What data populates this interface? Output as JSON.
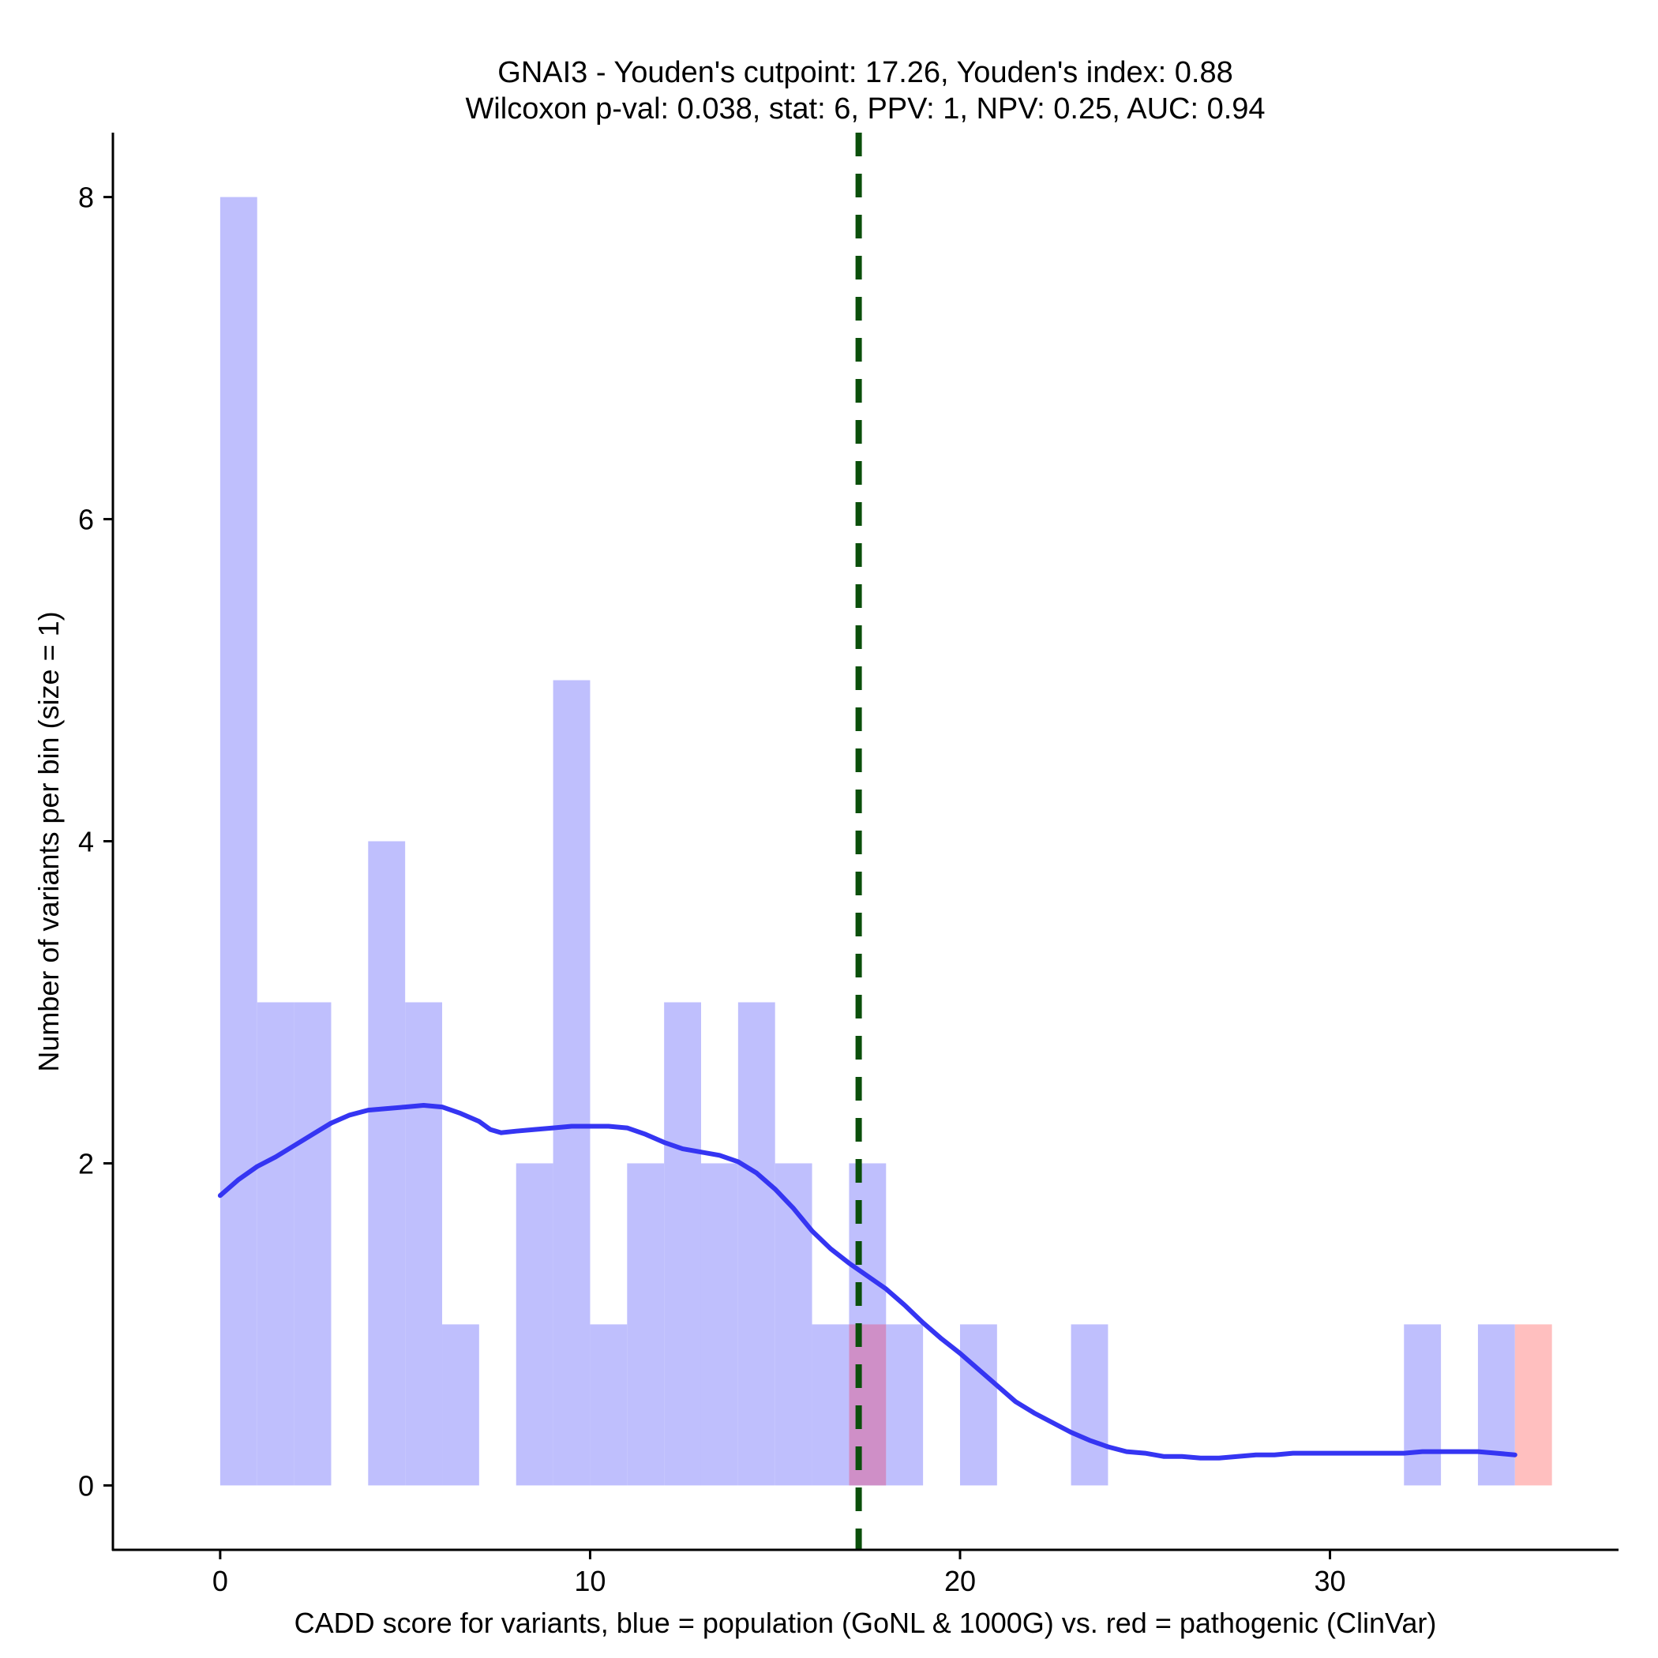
{
  "chart_data": {
    "type": "bar",
    "title_line1": "GNAI3 - Youden's cutpoint: 17.26, Youden's index: 0.88",
    "title_line2": "Wilcoxon p-val: 0.038, stat: 6, PPV: 1, NPV: 0.25, AUC: 0.94",
    "xlabel": "CADD score for variants, blue = population (GoNL & 1000G) vs. red = pathogenic (ClinVar)",
    "ylabel": "Number of variants per bin (size = 1)",
    "xlim": [
      -2.9,
      37.8
    ],
    "ylim": [
      -0.4,
      8.4
    ],
    "x_ticks": [
      0,
      10,
      20,
      30
    ],
    "y_ticks": [
      0,
      2,
      4,
      6,
      8
    ],
    "bin_width": 1,
    "series": [
      {
        "name": "population",
        "color": "#bfbffd",
        "bins": [
          {
            "start": 0,
            "count": 8
          },
          {
            "start": 1,
            "count": 3
          },
          {
            "start": 2,
            "count": 3
          },
          {
            "start": 4,
            "count": 4
          },
          {
            "start": 5,
            "count": 3
          },
          {
            "start": 6,
            "count": 1
          },
          {
            "start": 8,
            "count": 2
          },
          {
            "start": 9,
            "count": 5
          },
          {
            "start": 10,
            "count": 1
          },
          {
            "start": 11,
            "count": 2
          },
          {
            "start": 12,
            "count": 3
          },
          {
            "start": 13,
            "count": 2
          },
          {
            "start": 14,
            "count": 3
          },
          {
            "start": 15,
            "count": 2
          },
          {
            "start": 16,
            "count": 1
          },
          {
            "start": 17,
            "count": 2
          },
          {
            "start": 18,
            "count": 1
          },
          {
            "start": 20,
            "count": 1
          },
          {
            "start": 23,
            "count": 1
          },
          {
            "start": 32,
            "count": 1
          },
          {
            "start": 34,
            "count": 1
          }
        ]
      },
      {
        "name": "pathogenic",
        "color": "#ffbfbf",
        "overlap_color": "#cf8fc7",
        "bins": [
          {
            "start": 17,
            "count": 1
          },
          {
            "start": 35,
            "count": 1
          }
        ]
      }
    ],
    "density_curve": {
      "color": "#3535f2",
      "points": [
        [
          0,
          1.8
        ],
        [
          0.5,
          1.9
        ],
        [
          1,
          1.98
        ],
        [
          1.5,
          2.04
        ],
        [
          2,
          2.11
        ],
        [
          2.5,
          2.18
        ],
        [
          3,
          2.25
        ],
        [
          3.5,
          2.3
        ],
        [
          4,
          2.33
        ],
        [
          4.5,
          2.34
        ],
        [
          5,
          2.35
        ],
        [
          5.5,
          2.36
        ],
        [
          6,
          2.35
        ],
        [
          6.5,
          2.31
        ],
        [
          7,
          2.26
        ],
        [
          7.3,
          2.21
        ],
        [
          7.6,
          2.19
        ],
        [
          8,
          2.2
        ],
        [
          8.5,
          2.21
        ],
        [
          9,
          2.22
        ],
        [
          9.5,
          2.23
        ],
        [
          10,
          2.23
        ],
        [
          10.5,
          2.23
        ],
        [
          11,
          2.22
        ],
        [
          11.5,
          2.18
        ],
        [
          12,
          2.13
        ],
        [
          12.5,
          2.09
        ],
        [
          13,
          2.07
        ],
        [
          13.5,
          2.05
        ],
        [
          14,
          2.01
        ],
        [
          14.5,
          1.94
        ],
        [
          15,
          1.84
        ],
        [
          15.5,
          1.72
        ],
        [
          16,
          1.58
        ],
        [
          16.5,
          1.47
        ],
        [
          17,
          1.38
        ],
        [
          17.5,
          1.3
        ],
        [
          18,
          1.22
        ],
        [
          18.5,
          1.12
        ],
        [
          19,
          1.01
        ],
        [
          19.5,
          0.91
        ],
        [
          20,
          0.82
        ],
        [
          20.5,
          0.72
        ],
        [
          21,
          0.62
        ],
        [
          21.5,
          0.52
        ],
        [
          22,
          0.45
        ],
        [
          22.5,
          0.39
        ],
        [
          23,
          0.33
        ],
        [
          23.5,
          0.28
        ],
        [
          24,
          0.24
        ],
        [
          24.5,
          0.21
        ],
        [
          25,
          0.2
        ],
        [
          25.5,
          0.18
        ],
        [
          26,
          0.18
        ],
        [
          26.5,
          0.17
        ],
        [
          27,
          0.17
        ],
        [
          27.5,
          0.18
        ],
        [
          28,
          0.19
        ],
        [
          28.5,
          0.19
        ],
        [
          29,
          0.2
        ],
        [
          29.5,
          0.2
        ],
        [
          30,
          0.2
        ],
        [
          30.5,
          0.2
        ],
        [
          31,
          0.2
        ],
        [
          31.5,
          0.2
        ],
        [
          32,
          0.2
        ],
        [
          32.5,
          0.21
        ],
        [
          33,
          0.21
        ],
        [
          33.5,
          0.21
        ],
        [
          34,
          0.21
        ],
        [
          34.5,
          0.2
        ],
        [
          35,
          0.19
        ]
      ]
    },
    "cutpoint": {
      "value": 17.26,
      "color": "#0b4f0b",
      "style": "dashed"
    }
  }
}
